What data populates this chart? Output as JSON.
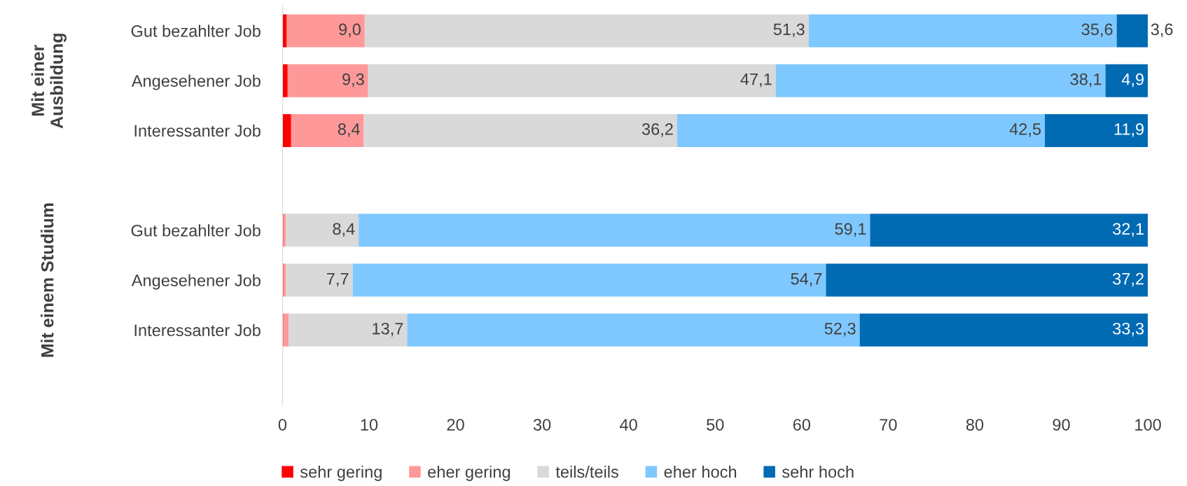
{
  "chart_data": {
    "type": "bar",
    "orientation": "horizontal",
    "stacked": true,
    "categories": [
      "Gut bezahlter Job",
      "Angesehener Job",
      "Interessanter Job",
      null,
      "Gut bezahlter Job",
      "Angesehener Job",
      "Interessanter Job",
      null
    ],
    "series": [
      {
        "name": "sehr gering",
        "color": "#ff0000",
        "values": [
          0.5,
          0.6,
          1.0,
          null,
          0.1,
          0.1,
          0.1,
          null
        ],
        "value_labels": [
          null,
          null,
          null,
          null,
          null,
          null,
          null,
          null
        ]
      },
      {
        "name": "eher gering",
        "color": "#ff9999",
        "values": [
          9.0,
          9.3,
          8.4,
          null,
          0.3,
          0.3,
          0.6,
          null
        ],
        "value_labels": [
          "9,0",
          "9,3",
          "8,4",
          null,
          null,
          null,
          null,
          null
        ]
      },
      {
        "name": "teils/teils",
        "color": "#d9d9d9",
        "values": [
          51.3,
          47.1,
          36.2,
          null,
          8.4,
          7.7,
          13.7,
          null
        ],
        "value_labels": [
          "51,3",
          "47,1",
          "36,2",
          null,
          "8,4",
          "7,7",
          "13,7",
          null
        ]
      },
      {
        "name": "eher hoch",
        "color": "#7fc8ff",
        "values": [
          35.6,
          38.1,
          42.5,
          null,
          59.1,
          54.7,
          52.3,
          null
        ],
        "value_labels": [
          "35,6",
          "38,1",
          "42,5",
          null,
          "59,1",
          "54,7",
          "52,3",
          null
        ]
      },
      {
        "name": "sehr hoch",
        "color": "#006ab3",
        "values": [
          3.6,
          4.9,
          11.9,
          null,
          32.1,
          37.2,
          33.3,
          null
        ],
        "value_labels": [
          "3,6",
          "4,9",
          "11,9",
          null,
          "32,1",
          "37,2",
          "33,3",
          null
        ]
      }
    ],
    "xlim": [
      0,
      100
    ],
    "xticks": [
      0,
      10,
      20,
      30,
      40,
      50,
      60,
      70,
      80,
      90,
      100
    ],
    "annotations": [
      "Mit einer Ausbildung",
      "Mit einem Studium"
    ],
    "grid": false,
    "legend": "bottom"
  }
}
